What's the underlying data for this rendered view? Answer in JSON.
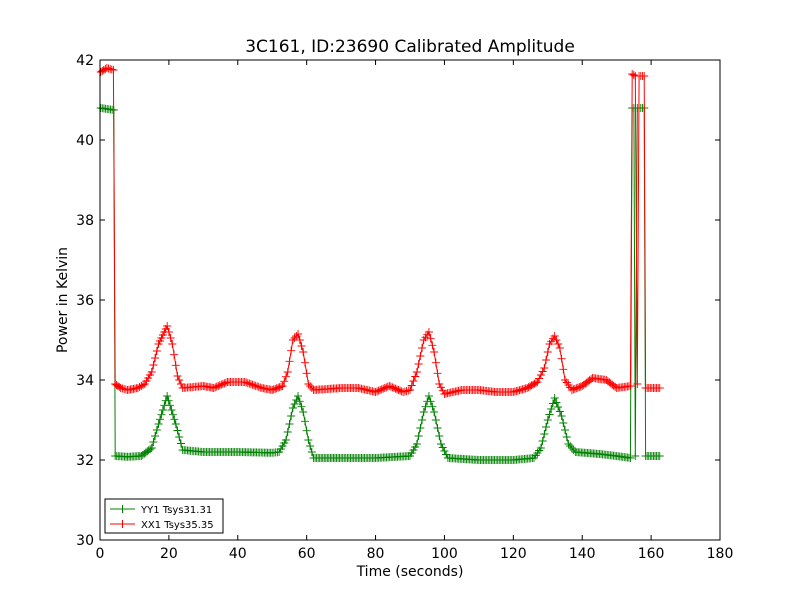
{
  "chart_data": {
    "type": "line",
    "title": "3C161, ID:23690 Calibrated Amplitude",
    "xlabel": "Time (seconds)",
    "ylabel": "Power in Kelvin",
    "xlim": [
      0,
      180
    ],
    "ylim": [
      30,
      42
    ],
    "xticks": [
      "0",
      "20",
      "40",
      "60",
      "80",
      "100",
      "120",
      "140",
      "160",
      "180"
    ],
    "yticks": [
      "30",
      "32",
      "34",
      "36",
      "38",
      "40",
      "42"
    ],
    "grid": false,
    "legend_position": "lower-left",
    "series": [
      {
        "name": "YY1 Tsys31.31",
        "color": "#008000",
        "marker": "plus",
        "points": [
          [
            0.2,
            40.8
          ],
          [
            4.0,
            40.75
          ],
          [
            4.4,
            32.1
          ],
          [
            8,
            32.08
          ],
          [
            12,
            32.1
          ],
          [
            15,
            32.3
          ],
          [
            17,
            32.9
          ],
          [
            19.5,
            33.6
          ],
          [
            22,
            32.9
          ],
          [
            24,
            32.25
          ],
          [
            30,
            32.2
          ],
          [
            40,
            32.2
          ],
          [
            50,
            32.18
          ],
          [
            52,
            32.2
          ],
          [
            54,
            32.5
          ],
          [
            56,
            33.3
          ],
          [
            57.5,
            33.6
          ],
          [
            59,
            33.2
          ],
          [
            60.5,
            32.5
          ],
          [
            62,
            32.05
          ],
          [
            70,
            32.05
          ],
          [
            80,
            32.05
          ],
          [
            90,
            32.1
          ],
          [
            92,
            32.4
          ],
          [
            94,
            33.2
          ],
          [
            95.5,
            33.6
          ],
          [
            97,
            33.2
          ],
          [
            99,
            32.4
          ],
          [
            101,
            32.05
          ],
          [
            110,
            32.0
          ],
          [
            120,
            32.0
          ],
          [
            126,
            32.05
          ],
          [
            128,
            32.3
          ],
          [
            130,
            33.0
          ],
          [
            132,
            33.55
          ],
          [
            134,
            33.1
          ],
          [
            136,
            32.4
          ],
          [
            138,
            32.2
          ],
          [
            145,
            32.15
          ],
          [
            150,
            32.1
          ],
          [
            154,
            32.05
          ],
          [
            154.5,
            40.8
          ],
          [
            155.0,
            40.8
          ],
          [
            155.4,
            32.1
          ],
          [
            156,
            40.8
          ],
          [
            158,
            40.8
          ],
          [
            158.4,
            32.1
          ],
          [
            162.5,
            32.1
          ]
        ]
      },
      {
        "name": "XX1 Tsys35.35",
        "color": "#ff0000",
        "marker": "plus",
        "points": [
          [
            0.2,
            41.7
          ],
          [
            2,
            41.8
          ],
          [
            3.9,
            41.75
          ],
          [
            4.4,
            33.9
          ],
          [
            6,
            33.8
          ],
          [
            8,
            33.75
          ],
          [
            11,
            33.8
          ],
          [
            13,
            33.9
          ],
          [
            15,
            34.2
          ],
          [
            17,
            34.9
          ],
          [
            19.5,
            35.35
          ],
          [
            21,
            34.9
          ],
          [
            22.5,
            34.1
          ],
          [
            24,
            33.8
          ],
          [
            30,
            33.85
          ],
          [
            33,
            33.8
          ],
          [
            37,
            33.95
          ],
          [
            42,
            33.95
          ],
          [
            47,
            33.8
          ],
          [
            50,
            33.75
          ],
          [
            53,
            33.85
          ],
          [
            54.5,
            34.2
          ],
          [
            56,
            35.0
          ],
          [
            57.5,
            35.15
          ],
          [
            59,
            34.7
          ],
          [
            60.5,
            33.9
          ],
          [
            62,
            33.75
          ],
          [
            70,
            33.8
          ],
          [
            75,
            33.8
          ],
          [
            80,
            33.7
          ],
          [
            84,
            33.85
          ],
          [
            88,
            33.7
          ],
          [
            90,
            33.75
          ],
          [
            92,
            34.2
          ],
          [
            94,
            35.0
          ],
          [
            95.5,
            35.2
          ],
          [
            97,
            34.7
          ],
          [
            98.5,
            33.9
          ],
          [
            100,
            33.65
          ],
          [
            105,
            33.75
          ],
          [
            110,
            33.75
          ],
          [
            115,
            33.7
          ],
          [
            120,
            33.7
          ],
          [
            124,
            33.8
          ],
          [
            127,
            33.95
          ],
          [
            129,
            34.3
          ],
          [
            130.5,
            34.9
          ],
          [
            132,
            35.1
          ],
          [
            133.5,
            34.8
          ],
          [
            135,
            34.0
          ],
          [
            137,
            33.75
          ],
          [
            140,
            33.85
          ],
          [
            143,
            34.05
          ],
          [
            147,
            34.0
          ],
          [
            150,
            33.8
          ],
          [
            154,
            33.85
          ],
          [
            154.5,
            41.65
          ],
          [
            155.4,
            41.6
          ],
          [
            156.0,
            33.9
          ],
          [
            156.5,
            41.6
          ],
          [
            158,
            41.6
          ],
          [
            158.4,
            33.8
          ],
          [
            162.5,
            33.8
          ]
        ]
      }
    ]
  }
}
